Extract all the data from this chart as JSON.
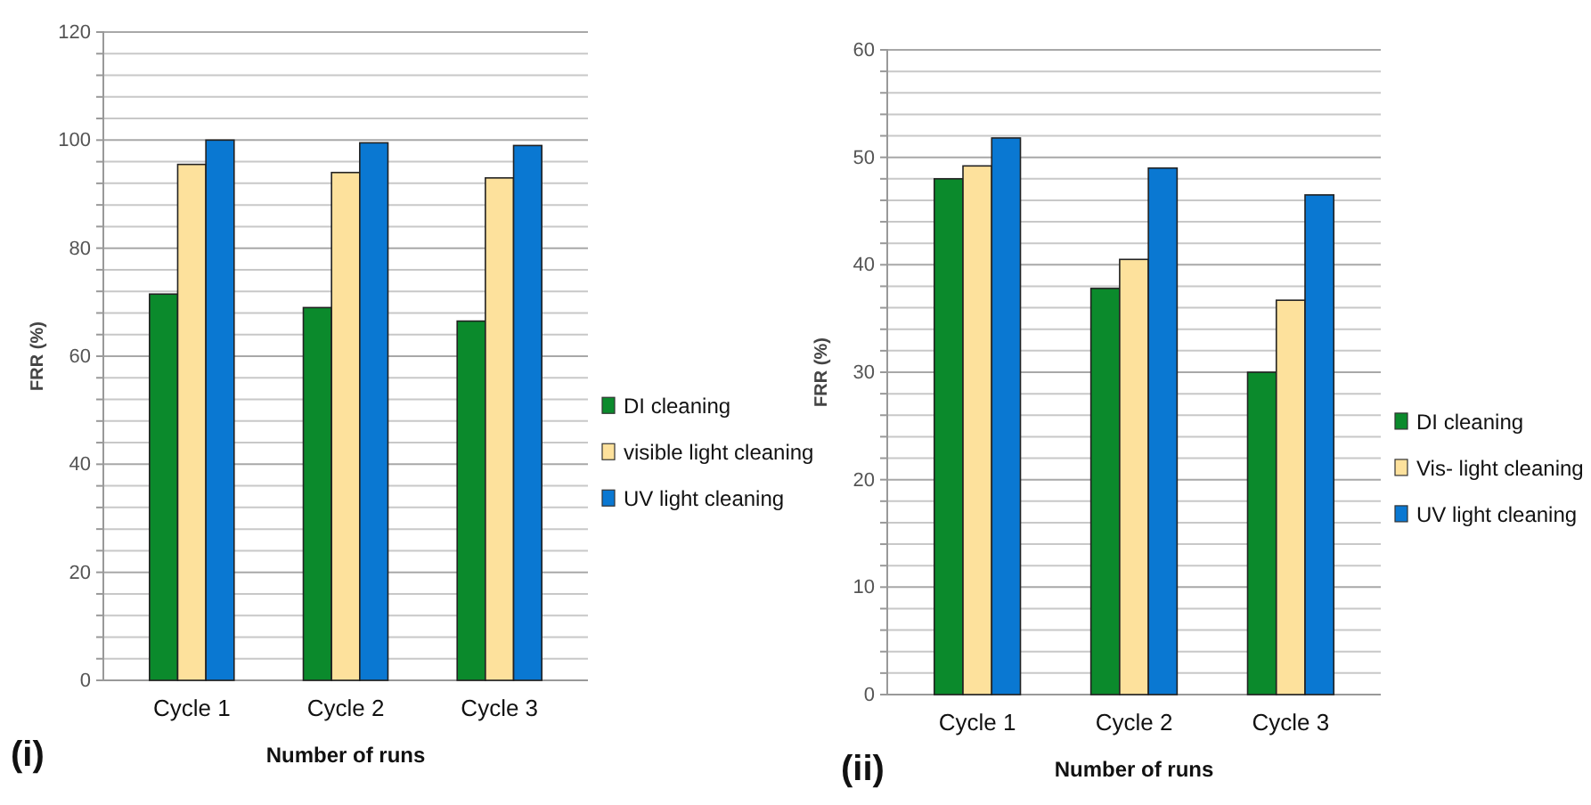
{
  "chart_data": [
    {
      "type": "bar",
      "xlabel": "Number of runs",
      "ylabel": "FRR (%)",
      "categories": [
        "Cycle 1",
        "Cycle 2",
        "Cycle 3"
      ],
      "series": [
        {
          "name": "DI cleaning",
          "color": "#0b8a2c",
          "values": [
            71.5,
            69,
            66.5
          ]
        },
        {
          "name": "visible light cleaning",
          "color": "#fde19c",
          "values": [
            95.5,
            94,
            93
          ]
        },
        {
          "name": "UV light cleaning",
          "color": "#0a78d2",
          "values": [
            100,
            99.5,
            99
          ]
        }
      ],
      "ylim": [
        0,
        120
      ],
      "yticks": [
        0,
        {
          "value": 4,
          "label": null
        },
        {
          "value": 8,
          "label": null
        },
        {
          "value": 12,
          "label": null
        },
        {
          "value": 16,
          "label": null
        },
        20,
        {
          "value": 24,
          "label": null
        },
        {
          "value": 28,
          "label": null
        },
        {
          "value": 32,
          "label": null
        },
        {
          "value": 36,
          "label": null
        },
        40,
        {
          "value": 44,
          "label": null
        },
        {
          "value": 48,
          "label": null
        },
        {
          "value": 52,
          "label": null
        },
        {
          "value": 56,
          "label": null
        },
        60,
        {
          "value": 64,
          "label": null
        },
        {
          "value": 68,
          "label": null
        },
        {
          "value": 72,
          "label": null
        },
        {
          "value": 76,
          "label": null
        },
        80,
        {
          "value": 84,
          "label": null
        },
        {
          "value": 88,
          "label": null
        },
        {
          "value": 92,
          "label": null
        },
        {
          "value": 96,
          "label": null
        },
        100,
        {
          "value": 104,
          "label": null
        },
        {
          "value": 108,
          "label": null
        },
        {
          "value": 112,
          "label": null
        },
        {
          "value": 116,
          "label": null
        },
        120
      ],
      "grid": "y",
      "legend": "right",
      "annotations": [
        "(i)"
      ]
    },
    {
      "type": "bar",
      "xlabel": "Number of runs",
      "ylabel": "FRR (%)",
      "categories": [
        "Cycle 1",
        "Cycle 2",
        "Cycle 3"
      ],
      "series": [
        {
          "name": "DI cleaning",
          "color": "#0b8a2c",
          "values": [
            48,
            37.8,
            30
          ]
        },
        {
          "name": "Vis- light cleaning",
          "color": "#fde19c",
          "values": [
            49.2,
            40.5,
            36.7
          ]
        },
        {
          "name": "UV light cleaning",
          "color": "#0a78d2",
          "values": [
            51.8,
            49,
            46.5
          ]
        }
      ],
      "ylim": [
        0,
        60
      ],
      "yticks": [
        0,
        {
          "value": 2,
          "label": null
        },
        {
          "value": 4,
          "label": null
        },
        {
          "value": 6,
          "label": null
        },
        {
          "value": 8,
          "label": null
        },
        10,
        {
          "value": 12,
          "label": null
        },
        {
          "value": 14,
          "label": null
        },
        {
          "value": 16,
          "label": null
        },
        {
          "value": 18,
          "label": null
        },
        20,
        {
          "value": 22,
          "label": null
        },
        {
          "value": 24,
          "label": null
        },
        {
          "value": 26,
          "label": null
        },
        {
          "value": 28,
          "label": null
        },
        30,
        {
          "value": 32,
          "label": null
        },
        {
          "value": 34,
          "label": null
        },
        {
          "value": 36,
          "label": null
        },
        {
          "value": 38,
          "label": null
        },
        40,
        {
          "value": 42,
          "label": null
        },
        {
          "value": 44,
          "label": null
        },
        {
          "value": 46,
          "label": null
        },
        {
          "value": 48,
          "label": null
        },
        50,
        {
          "value": 52,
          "label": null
        },
        {
          "value": 54,
          "label": null
        },
        {
          "value": 56,
          "label": null
        },
        {
          "value": 58,
          "label": null
        },
        60
      ],
      "grid": "y",
      "legend": "right",
      "annotations": [
        "(ii)"
      ]
    }
  ]
}
